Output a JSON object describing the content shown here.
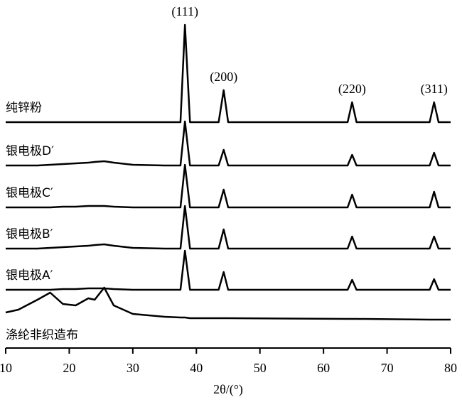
{
  "chart_data": {
    "type": "line",
    "xlabel": "2θ/(°)",
    "xlim": [
      10,
      80
    ],
    "xticks": [
      10,
      20,
      30,
      40,
      50,
      60,
      70,
      80
    ],
    "x": [
      10,
      12,
      15,
      17,
      19,
      21,
      23,
      24,
      25.5,
      27,
      30,
      35,
      37.5,
      38.2,
      39,
      43.5,
      44.3,
      45,
      63.8,
      64.5,
      65.2,
      76.7,
      77.4,
      78.1,
      80
    ],
    "color": "#000000",
    "series": [
      {
        "name": "纯锌粉",
        "values": [
          0,
          0,
          0,
          0,
          0,
          0,
          0,
          0,
          0,
          0,
          0,
          0,
          0,
          137,
          0,
          0,
          45,
          0,
          0,
          28,
          0,
          0,
          28,
          0,
          0
        ]
      },
      {
        "name": "银电极D′",
        "values": [
          0,
          0,
          0,
          1,
          2,
          3,
          4,
          5,
          6,
          4,
          1,
          0,
          0,
          62,
          0,
          0,
          22,
          0,
          0,
          15,
          0,
          0,
          18,
          0,
          0
        ]
      },
      {
        "name": "银电极C′",
        "values": [
          0,
          0,
          0,
          0,
          1,
          1,
          2,
          2,
          2,
          1,
          0,
          0,
          0,
          60,
          0,
          0,
          25,
          0,
          0,
          18,
          0,
          0,
          22,
          0,
          0
        ]
      },
      {
        "name": "银电极B′",
        "values": [
          0,
          0,
          0,
          1,
          2,
          3,
          4,
          5,
          6,
          4,
          1,
          0,
          0,
          60,
          0,
          0,
          27,
          0,
          0,
          17,
          0,
          0,
          17,
          0,
          0
        ]
      },
      {
        "name": "银电极A′",
        "values": [
          0,
          0,
          0,
          0,
          1,
          1,
          2,
          2,
          2,
          1,
          0,
          0,
          0,
          55,
          0,
          0,
          25,
          0,
          0,
          14,
          0,
          0,
          15,
          0,
          0
        ]
      },
      {
        "name": "涤纶非织造布",
        "values": [
          10,
          14,
          28,
          38,
          22,
          20,
          30,
          28,
          45,
          20,
          8,
          4,
          3,
          3,
          2,
          2,
          2,
          2,
          1,
          1,
          1,
          0,
          0,
          0,
          0
        ]
      }
    ],
    "annotations": [
      {
        "text": "(111)",
        "x": 38.2
      },
      {
        "text": "(200)",
        "x": 44.3
      },
      {
        "text": "(220)",
        "x": 64.5
      },
      {
        "text": "(311)",
        "x": 77.4
      }
    ]
  }
}
